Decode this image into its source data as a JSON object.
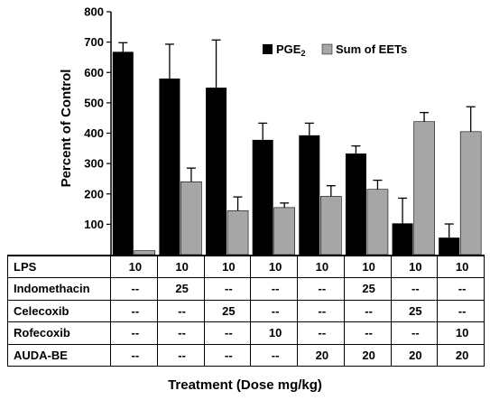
{
  "chart_data": {
    "type": "bar",
    "ylabel": "Percent of Control",
    "xlabel": "Treatment (Dose mg/kg)",
    "ylim": [
      0,
      800
    ],
    "yticks": [
      100,
      200,
      300,
      400,
      500,
      600,
      700,
      800
    ],
    "legend_position": "top-right",
    "series": [
      {
        "name": "PGE",
        "name_sub": "2",
        "color": "#000000",
        "values": [
          668,
          580,
          550,
          378,
          393,
          333,
          103,
          56
        ],
        "errors": [
          30,
          113,
          157,
          55,
          40,
          25,
          83,
          45
        ]
      },
      {
        "name": "Sum of EETs",
        "name_sub": "",
        "color": "#a6a6a6",
        "values": [
          13,
          240,
          145,
          155,
          192,
          215,
          438,
          405
        ],
        "errors": [
          0,
          45,
          45,
          15,
          35,
          30,
          30,
          82
        ]
      }
    ]
  },
  "table": {
    "rows": [
      {
        "label": "LPS",
        "cells": [
          "10",
          "10",
          "10",
          "10",
          "10",
          "10",
          "10",
          "10"
        ]
      },
      {
        "label": "Indomethacin",
        "cells": [
          "--",
          "25",
          "--",
          "--",
          "--",
          "25",
          "--",
          "--"
        ]
      },
      {
        "label": "Celecoxib",
        "cells": [
          "--",
          "--",
          "25",
          "--",
          "--",
          "--",
          "25",
          "--"
        ]
      },
      {
        "label": "Rofecoxib",
        "cells": [
          "--",
          "--",
          "--",
          "10",
          "--",
          "--",
          "--",
          "10"
        ]
      },
      {
        "label": "AUDA-BE",
        "cells": [
          "--",
          "--",
          "--",
          "--",
          "20",
          "20",
          "20",
          "20"
        ]
      }
    ]
  }
}
